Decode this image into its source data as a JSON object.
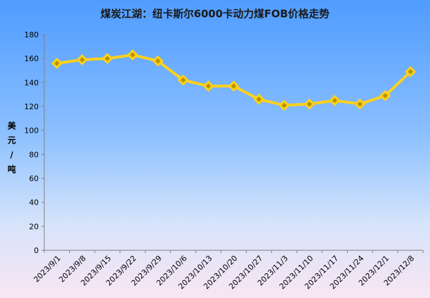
{
  "chart_data": {
    "type": "line",
    "title": "煤炭江湖：纽卡斯尔6000卡动力煤FOB价格走势",
    "ylabel": "美元/吨",
    "xlabel": "",
    "ylim": [
      0,
      180
    ],
    "yticks": [
      0,
      20,
      40,
      60,
      80,
      100,
      120,
      140,
      160,
      180
    ],
    "categories": [
      "2023/9/1",
      "2023/9/8",
      "2023/9/15",
      "2023/9/22",
      "2023/9/29",
      "2023/10/6",
      "2023/10/13",
      "2023/10/20",
      "2023/10/27",
      "2023/11/3",
      "2023/11/10",
      "2023/11/17",
      "2023/11/24",
      "2023/12/1",
      "2023/12/8"
    ],
    "series": [
      {
        "values": [
          156,
          159,
          160,
          163,
          158,
          142,
          137,
          137,
          126,
          121,
          122,
          125,
          122,
          129,
          149
        ]
      }
    ],
    "grid": false,
    "legend": "none",
    "colors": {
      "line": "#ffd11a",
      "marker_inner": "#b89400",
      "axis": "#808080"
    }
  }
}
